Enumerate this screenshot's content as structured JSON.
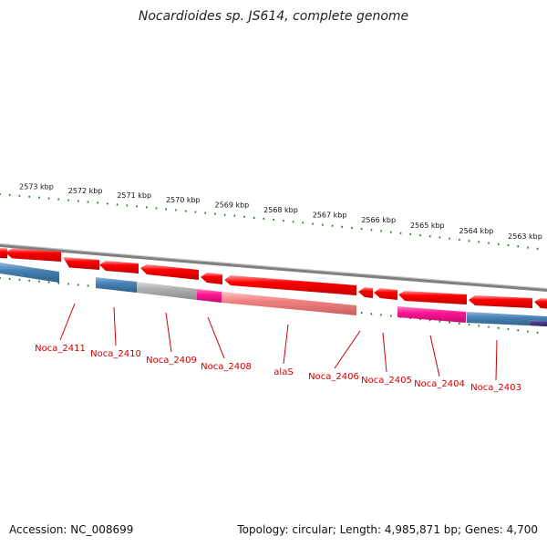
{
  "title": "Nocardioides sp. JS614, complete genome",
  "footer": {
    "accession": "Accession: NC_008699",
    "summary": "Topology: circular; Length: 4,985,871 bp; Genes: 4,700"
  },
  "scale_labels": [
    "2573 kbp",
    "2572 kbp",
    "2571 kbp",
    "2570 kbp",
    "2569 kbp",
    "2568 kbp",
    "2567 kbp",
    "2566 kbp",
    "2565 kbp",
    "2564 kbp",
    "2563 kbp"
  ],
  "gene_labels": [
    "Noca_2411",
    "Noca_2410",
    "Noca_2409",
    "Noca_2408",
    "alaS",
    "Noca_2406",
    "Noca_2405",
    "Noca_2404",
    "Noca_2403"
  ],
  "colors": {
    "forward_cds": "#ff0000",
    "blue_feature": "#4682b4",
    "grey_feature": "#b0b0b0",
    "magenta_feature": "#ff1493",
    "pink_feature": "#f08080",
    "navy_feature": "#483d8b",
    "backbone": "#808080",
    "ticks": "#1a7a1a",
    "label_text": "#cc0000"
  }
}
